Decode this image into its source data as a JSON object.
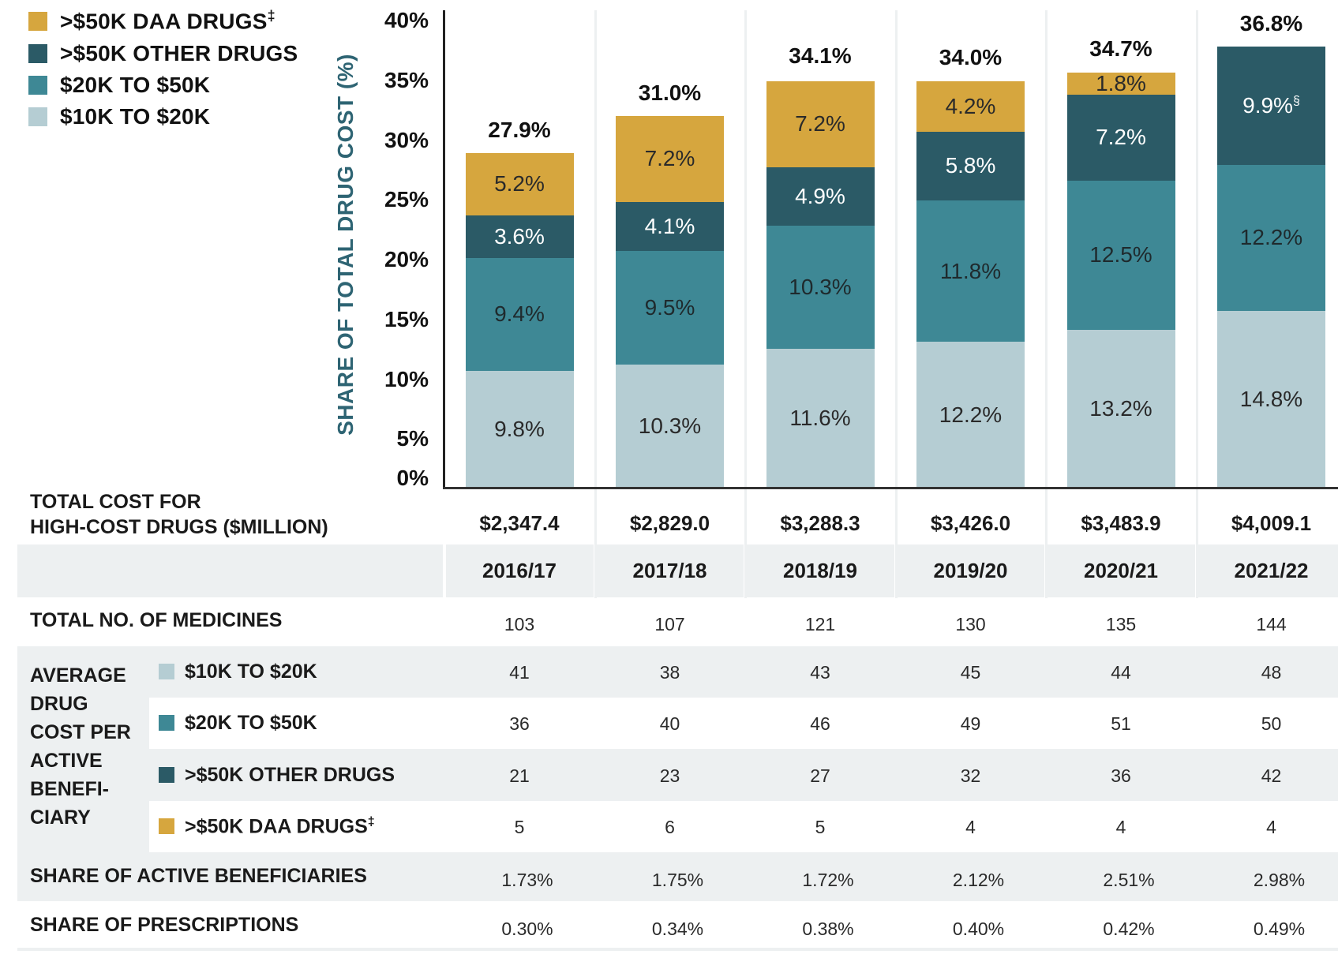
{
  "colors": {
    "daa": "#d6a63e",
    "other": "#2b5a66",
    "mid": "#3e8895",
    "low": "#b5cdd3",
    "axis_label": "#2e6473",
    "row_grey": "#edf0f1"
  },
  "legend": [
    {
      "key": "daa",
      "label": ">$50K DAA DRUGS",
      "sup": "‡"
    },
    {
      "key": "other",
      "label": ">$50K OTHER DRUGS",
      "sup": ""
    },
    {
      "key": "mid",
      "label": "$20K TO $50K",
      "sup": ""
    },
    {
      "key": "low",
      "label": "$10K TO $20K",
      "sup": ""
    }
  ],
  "chart_data": {
    "type": "bar",
    "stacked": true,
    "title": "",
    "xlabel": "",
    "ylabel": "SHARE OF TOTAL DRUG COST (%)",
    "ylim": [
      0,
      40
    ],
    "yticks": [
      0,
      5,
      10,
      15,
      20,
      25,
      30,
      35,
      40
    ],
    "ytick_labels": [
      "0%",
      "5%",
      "10%",
      "15%",
      "20%",
      "25%",
      "30%",
      "35%",
      "40%"
    ],
    "categories": [
      "2016/17",
      "2017/18",
      "2018/19",
      "2019/20",
      "2020/21",
      "2021/22"
    ],
    "series": [
      {
        "name": "$10K TO $20K",
        "key": "low",
        "values": [
          9.8,
          10.3,
          11.6,
          12.2,
          13.2,
          14.8
        ],
        "labels": [
          "9.8%",
          "10.3%",
          "11.6%",
          "12.2%",
          "13.2%",
          "14.8%"
        ]
      },
      {
        "name": "$20K TO $50K",
        "key": "mid",
        "values": [
          9.4,
          9.5,
          10.3,
          11.8,
          12.5,
          12.2
        ],
        "labels": [
          "9.4%",
          "9.5%",
          "10.3%",
          "11.8%",
          "12.5%",
          "12.2%"
        ]
      },
      {
        "name": ">$50K OTHER DRUGS",
        "key": "other",
        "values": [
          3.6,
          4.1,
          4.9,
          5.8,
          7.2,
          9.9
        ],
        "labels": [
          "3.6%",
          "4.1%",
          "4.9%",
          "5.8%",
          "7.2%",
          "9.9%§"
        ]
      },
      {
        "name": ">$50K DAA DRUGS‡",
        "key": "daa",
        "values": [
          5.2,
          7.2,
          7.2,
          4.2,
          1.8,
          0
        ],
        "labels": [
          "5.2%",
          "7.2%",
          "7.2%",
          "4.2%",
          "1.8%",
          ""
        ]
      }
    ],
    "totals": [
      27.9,
      31.0,
      34.1,
      34.0,
      34.7,
      36.8
    ],
    "total_labels": [
      "27.9%",
      "31.0%",
      "34.1%",
      "34.0%",
      "34.7%",
      "36.8%"
    ],
    "legend_position": "top-left",
    "grid": false
  },
  "table": {
    "total_cost": {
      "label_line1": "TOTAL COST FOR",
      "label_line2": "HIGH-COST DRUGS ($MILLION)",
      "values": [
        "$2,347.4",
        "$2,829.0",
        "$3,288.3",
        "$3,426.0",
        "$3,483.9",
        "$4,009.1"
      ]
    },
    "years": [
      "2016/17",
      "2017/18",
      "2018/19",
      "2019/20",
      "2020/21",
      "2021/22"
    ],
    "medicines": {
      "label": "TOTAL NO. OF MEDICINES",
      "values": [
        "103",
        "107",
        "121",
        "130",
        "135",
        "144"
      ]
    },
    "average": {
      "label_lines": [
        "AVERAGE",
        "DRUG",
        "COST PER",
        "ACTIVE",
        "BENEFI-",
        "CIARY"
      ],
      "rows": [
        {
          "key": "low",
          "label": "$10K TO $20K",
          "sup": "",
          "values": [
            "41",
            "38",
            "43",
            "45",
            "44",
            "48"
          ]
        },
        {
          "key": "mid",
          "label": "$20K TO $50K",
          "sup": "",
          "values": [
            "36",
            "40",
            "46",
            "49",
            "51",
            "50"
          ]
        },
        {
          "key": "other",
          "label": ">$50K OTHER DRUGS",
          "sup": "",
          "values": [
            "21",
            "23",
            "27",
            "32",
            "36",
            "42"
          ]
        },
        {
          "key": "daa",
          "label": ">$50K DAA DRUGS",
          "sup": "‡",
          "values": [
            "5",
            "6",
            "5",
            "4",
            "4",
            "4"
          ]
        }
      ]
    },
    "share_beneficiaries": {
      "label": "SHARE OF ACTIVE BENEFICIARIES",
      "values": [
        "1.73%",
        "1.75%",
        "1.72%",
        "2.12%",
        "2.51%",
        "2.98%"
      ]
    },
    "share_prescriptions": {
      "label": "SHARE OF PRESCRIPTIONS",
      "values": [
        "0.30%",
        "0.34%",
        "0.38%",
        "0.40%",
        "0.42%",
        "0.49%"
      ]
    }
  }
}
